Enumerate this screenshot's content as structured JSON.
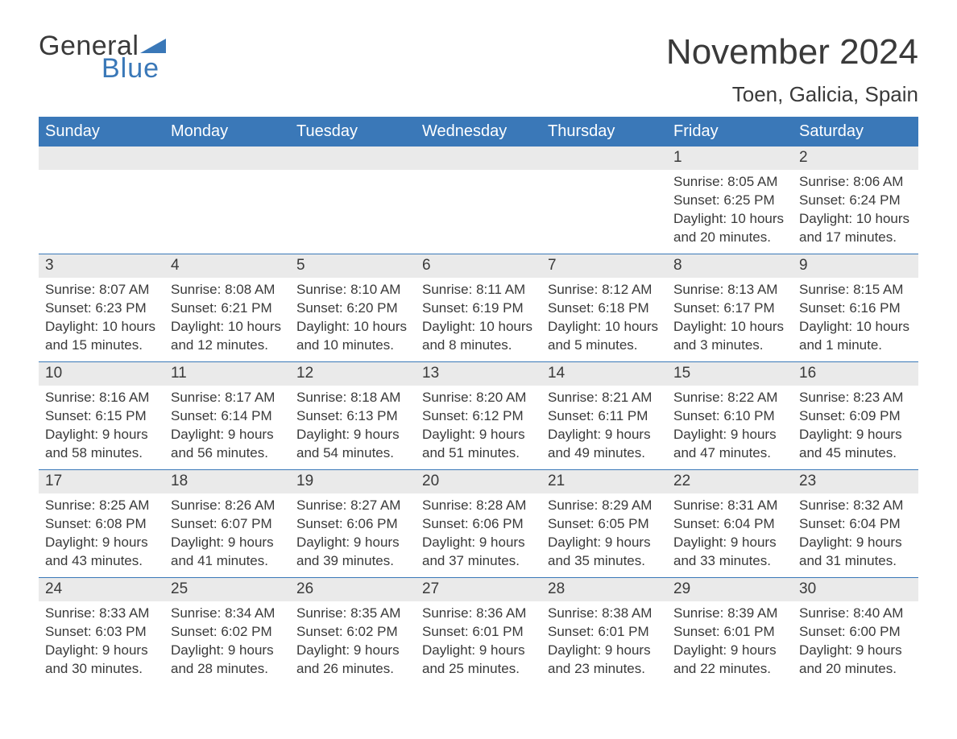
{
  "logo": {
    "word1": "General",
    "word2": "Blue",
    "triangle_color": "#3a78b8",
    "text_color_dark": "#3a3a3a",
    "text_color_blue": "#3a78b8"
  },
  "header": {
    "month_title": "November 2024",
    "location": "Toen, Galicia, Spain"
  },
  "colors": {
    "header_bg": "#3a78b8",
    "header_text": "#ffffff",
    "daynum_bg": "#eaeaea",
    "text": "#3a3a3a",
    "border": "#3a78b8",
    "background": "#ffffff"
  },
  "fonts": {
    "month_title_size": 44,
    "location_size": 26,
    "day_header_size": 20,
    "body_size": 17,
    "logo_size": 34
  },
  "day_headers": [
    "Sunday",
    "Monday",
    "Tuesday",
    "Wednesday",
    "Thursday",
    "Friday",
    "Saturday"
  ],
  "weeks": [
    [
      null,
      null,
      null,
      null,
      null,
      {
        "n": "1",
        "sunrise": "Sunrise: 8:05 AM",
        "sunset": "Sunset: 6:25 PM",
        "dl1": "Daylight: 10 hours",
        "dl2": "and 20 minutes."
      },
      {
        "n": "2",
        "sunrise": "Sunrise: 8:06 AM",
        "sunset": "Sunset: 6:24 PM",
        "dl1": "Daylight: 10 hours",
        "dl2": "and 17 minutes."
      }
    ],
    [
      {
        "n": "3",
        "sunrise": "Sunrise: 8:07 AM",
        "sunset": "Sunset: 6:23 PM",
        "dl1": "Daylight: 10 hours",
        "dl2": "and 15 minutes."
      },
      {
        "n": "4",
        "sunrise": "Sunrise: 8:08 AM",
        "sunset": "Sunset: 6:21 PM",
        "dl1": "Daylight: 10 hours",
        "dl2": "and 12 minutes."
      },
      {
        "n": "5",
        "sunrise": "Sunrise: 8:10 AM",
        "sunset": "Sunset: 6:20 PM",
        "dl1": "Daylight: 10 hours",
        "dl2": "and 10 minutes."
      },
      {
        "n": "6",
        "sunrise": "Sunrise: 8:11 AM",
        "sunset": "Sunset: 6:19 PM",
        "dl1": "Daylight: 10 hours",
        "dl2": "and 8 minutes."
      },
      {
        "n": "7",
        "sunrise": "Sunrise: 8:12 AM",
        "sunset": "Sunset: 6:18 PM",
        "dl1": "Daylight: 10 hours",
        "dl2": "and 5 minutes."
      },
      {
        "n": "8",
        "sunrise": "Sunrise: 8:13 AM",
        "sunset": "Sunset: 6:17 PM",
        "dl1": "Daylight: 10 hours",
        "dl2": "and 3 minutes."
      },
      {
        "n": "9",
        "sunrise": "Sunrise: 8:15 AM",
        "sunset": "Sunset: 6:16 PM",
        "dl1": "Daylight: 10 hours",
        "dl2": "and 1 minute."
      }
    ],
    [
      {
        "n": "10",
        "sunrise": "Sunrise: 8:16 AM",
        "sunset": "Sunset: 6:15 PM",
        "dl1": "Daylight: 9 hours",
        "dl2": "and 58 minutes."
      },
      {
        "n": "11",
        "sunrise": "Sunrise: 8:17 AM",
        "sunset": "Sunset: 6:14 PM",
        "dl1": "Daylight: 9 hours",
        "dl2": "and 56 minutes."
      },
      {
        "n": "12",
        "sunrise": "Sunrise: 8:18 AM",
        "sunset": "Sunset: 6:13 PM",
        "dl1": "Daylight: 9 hours",
        "dl2": "and 54 minutes."
      },
      {
        "n": "13",
        "sunrise": "Sunrise: 8:20 AM",
        "sunset": "Sunset: 6:12 PM",
        "dl1": "Daylight: 9 hours",
        "dl2": "and 51 minutes."
      },
      {
        "n": "14",
        "sunrise": "Sunrise: 8:21 AM",
        "sunset": "Sunset: 6:11 PM",
        "dl1": "Daylight: 9 hours",
        "dl2": "and 49 minutes."
      },
      {
        "n": "15",
        "sunrise": "Sunrise: 8:22 AM",
        "sunset": "Sunset: 6:10 PM",
        "dl1": "Daylight: 9 hours",
        "dl2": "and 47 minutes."
      },
      {
        "n": "16",
        "sunrise": "Sunrise: 8:23 AM",
        "sunset": "Sunset: 6:09 PM",
        "dl1": "Daylight: 9 hours",
        "dl2": "and 45 minutes."
      }
    ],
    [
      {
        "n": "17",
        "sunrise": "Sunrise: 8:25 AM",
        "sunset": "Sunset: 6:08 PM",
        "dl1": "Daylight: 9 hours",
        "dl2": "and 43 minutes."
      },
      {
        "n": "18",
        "sunrise": "Sunrise: 8:26 AM",
        "sunset": "Sunset: 6:07 PM",
        "dl1": "Daylight: 9 hours",
        "dl2": "and 41 minutes."
      },
      {
        "n": "19",
        "sunrise": "Sunrise: 8:27 AM",
        "sunset": "Sunset: 6:06 PM",
        "dl1": "Daylight: 9 hours",
        "dl2": "and 39 minutes."
      },
      {
        "n": "20",
        "sunrise": "Sunrise: 8:28 AM",
        "sunset": "Sunset: 6:06 PM",
        "dl1": "Daylight: 9 hours",
        "dl2": "and 37 minutes."
      },
      {
        "n": "21",
        "sunrise": "Sunrise: 8:29 AM",
        "sunset": "Sunset: 6:05 PM",
        "dl1": "Daylight: 9 hours",
        "dl2": "and 35 minutes."
      },
      {
        "n": "22",
        "sunrise": "Sunrise: 8:31 AM",
        "sunset": "Sunset: 6:04 PM",
        "dl1": "Daylight: 9 hours",
        "dl2": "and 33 minutes."
      },
      {
        "n": "23",
        "sunrise": "Sunrise: 8:32 AM",
        "sunset": "Sunset: 6:04 PM",
        "dl1": "Daylight: 9 hours",
        "dl2": "and 31 minutes."
      }
    ],
    [
      {
        "n": "24",
        "sunrise": "Sunrise: 8:33 AM",
        "sunset": "Sunset: 6:03 PM",
        "dl1": "Daylight: 9 hours",
        "dl2": "and 30 minutes."
      },
      {
        "n": "25",
        "sunrise": "Sunrise: 8:34 AM",
        "sunset": "Sunset: 6:02 PM",
        "dl1": "Daylight: 9 hours",
        "dl2": "and 28 minutes."
      },
      {
        "n": "26",
        "sunrise": "Sunrise: 8:35 AM",
        "sunset": "Sunset: 6:02 PM",
        "dl1": "Daylight: 9 hours",
        "dl2": "and 26 minutes."
      },
      {
        "n": "27",
        "sunrise": "Sunrise: 8:36 AM",
        "sunset": "Sunset: 6:01 PM",
        "dl1": "Daylight: 9 hours",
        "dl2": "and 25 minutes."
      },
      {
        "n": "28",
        "sunrise": "Sunrise: 8:38 AM",
        "sunset": "Sunset: 6:01 PM",
        "dl1": "Daylight: 9 hours",
        "dl2": "and 23 minutes."
      },
      {
        "n": "29",
        "sunrise": "Sunrise: 8:39 AM",
        "sunset": "Sunset: 6:01 PM",
        "dl1": "Daylight: 9 hours",
        "dl2": "and 22 minutes."
      },
      {
        "n": "30",
        "sunrise": "Sunrise: 8:40 AM",
        "sunset": "Sunset: 6:00 PM",
        "dl1": "Daylight: 9 hours",
        "dl2": "and 20 minutes."
      }
    ]
  ]
}
